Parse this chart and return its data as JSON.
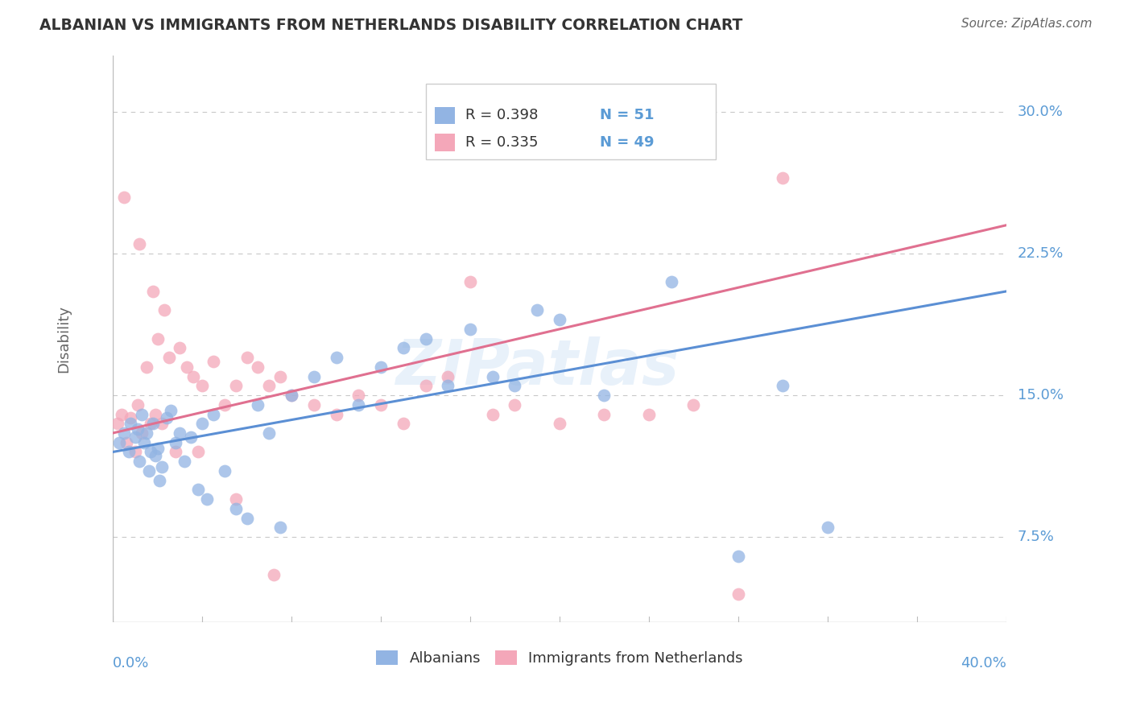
{
  "title": "ALBANIAN VS IMMIGRANTS FROM NETHERLANDS DISABILITY CORRELATION CHART",
  "source": "Source: ZipAtlas.com",
  "ylabel": "Disability",
  "xlim": [
    0.0,
    40.0
  ],
  "ylim": [
    3.0,
    33.0
  ],
  "yticks": [
    7.5,
    15.0,
    22.5,
    30.0
  ],
  "xticks": [
    0.0,
    4.0,
    8.0,
    12.0,
    16.0,
    20.0,
    24.0,
    28.0,
    32.0,
    36.0,
    40.0
  ],
  "blue_color": "#92b4e3",
  "pink_color": "#f4a7b9",
  "blue_line_color": "#5b8fd4",
  "pink_line_color": "#e07090",
  "legend_albanians": "Albanians",
  "legend_immigrants": "Immigrants from Netherlands",
  "watermark": "ZIPatlas",
  "blue_scatter_x": [
    0.3,
    0.5,
    0.7,
    0.8,
    1.0,
    1.1,
    1.2,
    1.3,
    1.4,
    1.5,
    1.6,
    1.7,
    1.8,
    1.9,
    2.0,
    2.1,
    2.2,
    2.4,
    2.6,
    2.8,
    3.0,
    3.2,
    3.5,
    3.8,
    4.0,
    4.2,
    4.5,
    5.0,
    5.5,
    6.0,
    6.5,
    7.0,
    7.5,
    8.0,
    9.0,
    10.0,
    11.0,
    12.0,
    13.0,
    14.0,
    15.0,
    16.0,
    17.0,
    18.0,
    19.0,
    20.0,
    22.0,
    25.0,
    28.0,
    30.0,
    32.0
  ],
  "blue_scatter_y": [
    12.5,
    13.0,
    12.0,
    13.5,
    12.8,
    13.2,
    11.5,
    14.0,
    12.5,
    13.0,
    11.0,
    12.0,
    13.5,
    11.8,
    12.2,
    10.5,
    11.2,
    13.8,
    14.2,
    12.5,
    13.0,
    11.5,
    12.8,
    10.0,
    13.5,
    9.5,
    14.0,
    11.0,
    9.0,
    8.5,
    14.5,
    13.0,
    8.0,
    15.0,
    16.0,
    17.0,
    14.5,
    16.5,
    17.5,
    18.0,
    15.5,
    18.5,
    16.0,
    15.5,
    19.5,
    19.0,
    15.0,
    21.0,
    6.5,
    15.5,
    8.0
  ],
  "pink_scatter_x": [
    0.2,
    0.4,
    0.6,
    0.8,
    1.0,
    1.1,
    1.3,
    1.5,
    1.7,
    1.9,
    2.0,
    2.2,
    2.5,
    2.8,
    3.0,
    3.3,
    3.6,
    4.0,
    4.5,
    5.0,
    5.5,
    6.0,
    6.5,
    7.0,
    7.5,
    8.0,
    9.0,
    10.0,
    11.0,
    12.0,
    13.0,
    14.0,
    15.0,
    16.0,
    17.0,
    18.0,
    20.0,
    22.0,
    24.0,
    26.0,
    28.0,
    30.0,
    0.5,
    1.2,
    1.8,
    2.3,
    3.8,
    5.5,
    7.2
  ],
  "pink_scatter_y": [
    13.5,
    14.0,
    12.5,
    13.8,
    12.0,
    14.5,
    13.0,
    16.5,
    13.5,
    14.0,
    18.0,
    13.5,
    17.0,
    12.0,
    17.5,
    16.5,
    16.0,
    15.5,
    16.8,
    14.5,
    15.5,
    17.0,
    16.5,
    15.5,
    16.0,
    15.0,
    14.5,
    14.0,
    15.0,
    14.5,
    13.5,
    15.5,
    16.0,
    21.0,
    14.0,
    14.5,
    13.5,
    14.0,
    14.0,
    14.5,
    4.5,
    26.5,
    25.5,
    23.0,
    20.5,
    19.5,
    12.0,
    9.5,
    5.5
  ],
  "blue_line_x0": 0.0,
  "blue_line_x1": 40.0,
  "blue_line_y0": 12.0,
  "blue_line_y1": 20.5,
  "pink_line_x0": 0.0,
  "pink_line_x1": 40.0,
  "pink_line_y0": 13.0,
  "pink_line_y1": 24.0,
  "title_color": "#333333",
  "tick_color": "#5b9bd5",
  "grid_color": "#c8c8c8",
  "background_color": "#ffffff",
  "legend_r_color": "#333333",
  "legend_n_color": "#5b9bd5"
}
